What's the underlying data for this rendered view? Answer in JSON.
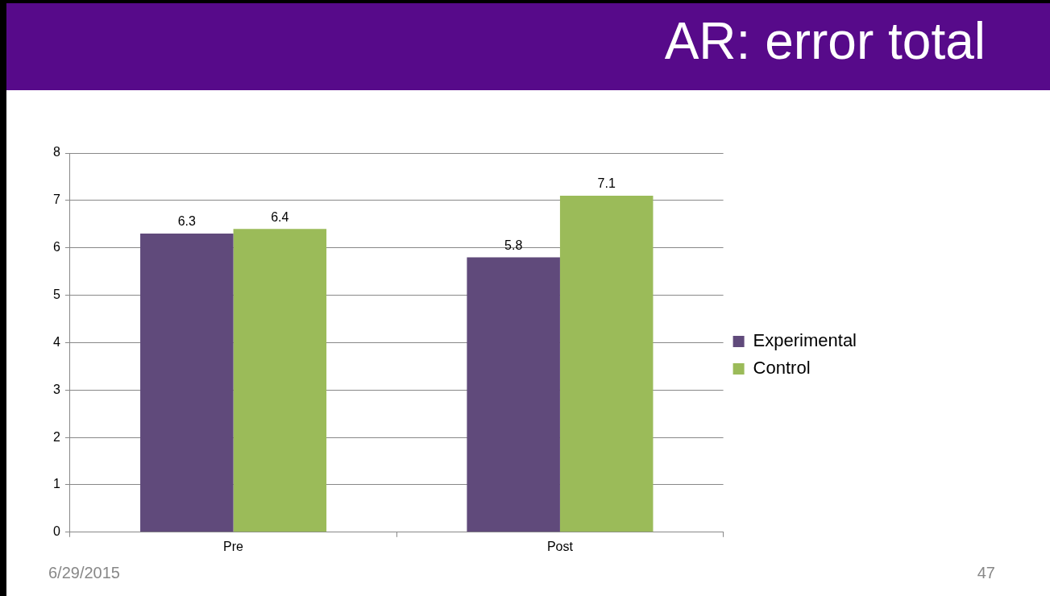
{
  "chart_data": {
    "type": "bar",
    "title": "AR: error total",
    "categories": [
      "Pre",
      "Post"
    ],
    "series": [
      {
        "name": "Experimental",
        "color": "#604a7b",
        "values": [
          6.3,
          5.8
        ]
      },
      {
        "name": "Control",
        "color": "#9bbb59",
        "values": [
          6.4,
          7.1
        ]
      }
    ],
    "ylim": [
      0,
      8
    ],
    "yticks": [
      0,
      1,
      2,
      3,
      4,
      5,
      6,
      7,
      8
    ],
    "grid": "y",
    "legend": "right",
    "data_labels": true,
    "annotations": [
      "6/29/2015",
      "47"
    ]
  }
}
